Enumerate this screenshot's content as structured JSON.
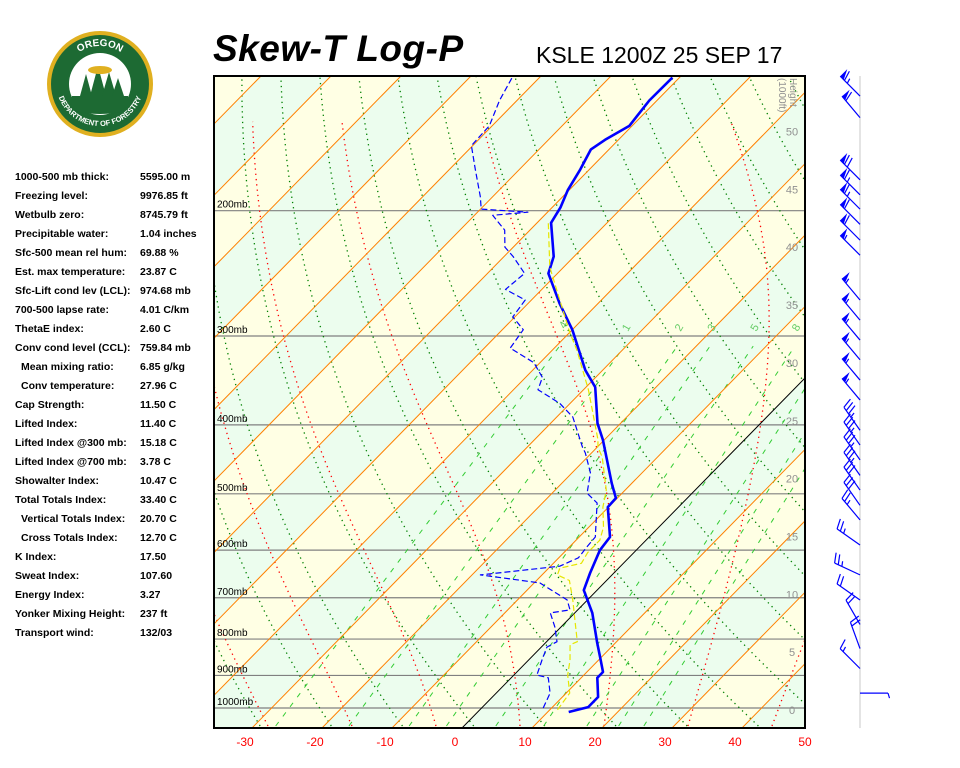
{
  "logo": {
    "top_text": "OREGON",
    "bottom_text": "DEPARTMENT OF FORESTRY"
  },
  "header": {
    "title": "Skew-T Log-P",
    "station_time": "KSLE 1200Z 25 SEP 17"
  },
  "stats": [
    {
      "label": "1000-500 mb thick:",
      "value": "5595.00 m"
    },
    {
      "label": "Freezing level:",
      "value": "9976.85 ft"
    },
    {
      "label": "Wetbulb zero:",
      "value": "8745.79 ft"
    },
    {
      "label": "Precipitable water:",
      "value": "1.04 inches"
    },
    {
      "label": "Sfc-500 mean rel hum:",
      "value": "69.88 %"
    },
    {
      "label": "Est. max temperature:",
      "value": "23.87 C"
    },
    {
      "label": "Sfc-Lift cond lev (LCL):",
      "value": "974.68 mb"
    },
    {
      "label": "700-500 lapse rate:",
      "value": "4.01 C/km"
    },
    {
      "label": "ThetaE index:",
      "value": "2.60 C"
    },
    {
      "label": "Conv cond level (CCL):",
      "value": "759.84 mb"
    },
    {
      "label": "Mean mixing ratio:",
      "value": "6.85 g/kg",
      "sub": true
    },
    {
      "label": "Conv temperature:",
      "value": "27.96 C",
      "sub": true
    },
    {
      "label": "Cap Strength:",
      "value": "11.50 C"
    },
    {
      "label": "Lifted Index:",
      "value": "11.40 C"
    },
    {
      "label": "Lifted Index @300 mb:",
      "value": "15.18 C"
    },
    {
      "label": "Lifted Index @700 mb:",
      "value": "3.78 C"
    },
    {
      "label": "Showalter Index:",
      "value": "10.47 C"
    },
    {
      "label": "Total Totals Index:",
      "value": "33.40 C"
    },
    {
      "label": "Vertical Totals Index:",
      "value": "20.70 C",
      "sub": true
    },
    {
      "label": "Cross Totals Index:",
      "value": "12.70 C",
      "sub": true
    },
    {
      "label": "K Index:",
      "value": "17.50"
    },
    {
      "label": "Sweat Index:",
      "value": "107.60"
    },
    {
      "label": "Energy Index:",
      "value": "3.27"
    },
    {
      "label": "Yonker Mixing Height:",
      "value": "237 ft"
    },
    {
      "label": "Transport wind:",
      "value": "132/03"
    }
  ],
  "chart_data": {
    "type": "line",
    "title": "Skew-T Log-P",
    "subtitle": "KSLE 1200Z 25 SEP 17",
    "x_axis": {
      "quantity": "temperature (C)",
      "ticks": [
        -30,
        -20,
        -10,
        0,
        10,
        20,
        30,
        40,
        50
      ],
      "range": [
        -35,
        50
      ]
    },
    "y_axis": {
      "scale": "log pressure",
      "range_mb": [
        1050,
        130
      ],
      "levels": [
        {
          "p": 1000,
          "label": "1000mb"
        },
        {
          "p": 900,
          "label": "900mb"
        },
        {
          "p": 800,
          "label": "800mb"
        },
        {
          "p": 700,
          "label": "700mb"
        },
        {
          "p": 600,
          "label": "600mb"
        },
        {
          "p": 500,
          "label": "500mb"
        },
        {
          "p": 400,
          "label": "400mb"
        },
        {
          "p": 300,
          "label": "300mb"
        },
        {
          "p": 200,
          "label": "200mb"
        }
      ]
    },
    "height_axis": {
      "label": "Height (1000ft)",
      "ticks": [
        0,
        5,
        10,
        15,
        20,
        25,
        30,
        35,
        40,
        45,
        50
      ]
    },
    "mixing_ratio_labels": [
      {
        "w": 0.4,
        "label": ".4"
      },
      {
        "w": 1,
        "label": "1"
      },
      {
        "w": 2,
        "label": "2"
      },
      {
        "w": 3,
        "label": "3"
      },
      {
        "w": 5,
        "label": "5"
      },
      {
        "w": 8,
        "label": "8"
      }
    ],
    "colors": {
      "isotherm": "#ff8000",
      "zero_isotherm": "#000000",
      "dry_adiabat": "#008000",
      "moist_adiabat": "#ff0000",
      "mixing_ratio": "#33cc33",
      "temperature": "#0000ff",
      "dewpoint": "#0000ff",
      "parcel": "#e6e600",
      "band_a": "#ecfdee",
      "band_b": "#ffffe4",
      "wind": "#0000ff"
    },
    "series": [
      {
        "style": "thick-solid",
        "color": "#0000ff",
        "points": [
          [
            1013,
            13.0
          ],
          [
            997,
            15.1
          ],
          [
            965,
            15.1
          ],
          [
            907,
            12.3
          ],
          [
            890,
            12.3
          ],
          [
            848,
            9.8
          ],
          [
            810,
            7.4
          ],
          [
            735,
            2.5
          ],
          [
            683,
            -1.9
          ],
          [
            646,
            -3.4
          ],
          [
            600,
            -5.2
          ],
          [
            575,
            -5.6
          ],
          [
            522,
            -10.1
          ],
          [
            507,
            -10.2
          ],
          [
            483,
            -12.9
          ],
          [
            420,
            -20.2
          ],
          [
            398,
            -23.3
          ],
          [
            354,
            -28.7
          ],
          [
            335,
            -32.5
          ],
          [
            294,
            -40.0
          ],
          [
            270,
            -45.5
          ],
          [
            245,
            -51.3
          ],
          [
            232,
            -52.9
          ],
          [
            208,
            -58.0
          ],
          [
            198,
            -58.8
          ],
          [
            187,
            -60.2
          ],
          [
            175,
            -61.3
          ],
          [
            164,
            -62.6
          ],
          [
            159,
            -61.9
          ],
          [
            152,
            -60.4
          ],
          [
            140,
            -61.1
          ],
          [
            130,
            -61.0
          ]
        ]
      },
      {
        "style": "dashed",
        "color": "#0000ff",
        "points": [
          [
            1000,
            8.8
          ],
          [
            953,
            7.7
          ],
          [
            907,
            5.3
          ],
          [
            899,
            3.3
          ],
          [
            856,
            1.9
          ],
          [
            821,
            0.8
          ],
          [
            807,
            1.5
          ],
          [
            769,
            -0.9
          ],
          [
            735,
            -3.5
          ],
          [
            728,
            -1.1
          ],
          [
            705,
            -2.9
          ],
          [
            683,
            -6.5
          ],
          [
            667,
            -9.2
          ],
          [
            650,
            -18.8
          ],
          [
            632,
            -8.7
          ],
          [
            615,
            -7.2
          ],
          [
            594,
            -7.5
          ],
          [
            575,
            -7.7
          ],
          [
            515,
            -12.2
          ],
          [
            499,
            -15.0
          ],
          [
            467,
            -17.4
          ],
          [
            438,
            -20.9
          ],
          [
            430,
            -22.1
          ],
          [
            390,
            -27.7
          ],
          [
            373,
            -31.5
          ],
          [
            357,
            -36.5
          ],
          [
            343,
            -37.6
          ],
          [
            327,
            -40.9
          ],
          [
            312,
            -46.3
          ],
          [
            294,
            -47.0
          ],
          [
            282,
            -50.3
          ],
          [
            267,
            -50.9
          ],
          [
            258,
            -55.2
          ],
          [
            245,
            -54.7
          ],
          [
            232,
            -58.7
          ],
          [
            225,
            -61.2
          ],
          [
            213,
            -63.6
          ],
          [
            203,
            -67.4
          ],
          [
            201,
            -62.8
          ],
          [
            199,
            -69.9
          ],
          [
            191,
            -71.8
          ],
          [
            175,
            -76.3
          ],
          [
            162,
            -80.2
          ],
          [
            152,
            -80.4
          ],
          [
            140,
            -82.5
          ],
          [
            130,
            -83.9
          ]
        ]
      },
      {
        "style": "dashed",
        "color": "#e6e600",
        "points": [
          [
            1006,
            11.1
          ],
          [
            953,
            10.5
          ],
          [
            899,
            7.7
          ],
          [
            856,
            5.9
          ],
          [
            815,
            3.8
          ],
          [
            807,
            4.4
          ],
          [
            752,
            1.0
          ],
          [
            705,
            -2.1
          ],
          [
            662,
            -5.3
          ],
          [
            650,
            -7.8
          ],
          [
            636,
            -8.4
          ],
          [
            626,
            -6.0
          ],
          [
            605,
            -6.6
          ],
          [
            581,
            -6.6
          ],
          [
            557,
            -7.9
          ],
          [
            522,
            -10.8
          ],
          [
            494,
            -12.7
          ],
          [
            444,
            -17.9
          ],
          [
            430,
            -19.9
          ],
          [
            420,
            -20.9
          ],
          [
            357,
            -29.3
          ],
          [
            314,
            -36.5
          ],
          [
            297,
            -39.9
          ],
          [
            264,
            -46.6
          ],
          [
            240,
            -52.0
          ],
          [
            208,
            -58.4
          ]
        ]
      }
    ],
    "winds": [
      {
        "p": 138,
        "dir": 315,
        "kt": 65
      },
      {
        "p": 148,
        "dir": 320,
        "kt": 60
      },
      {
        "p": 181,
        "dir": 315,
        "kt": 70
      },
      {
        "p": 190,
        "dir": 315,
        "kt": 65
      },
      {
        "p": 199,
        "dir": 315,
        "kt": 65
      },
      {
        "p": 209,
        "dir": 315,
        "kt": 60
      },
      {
        "p": 220,
        "dir": 315,
        "kt": 60
      },
      {
        "p": 231,
        "dir": 315,
        "kt": 55
      },
      {
        "p": 267,
        "dir": 320,
        "kt": 55
      },
      {
        "p": 285,
        "dir": 320,
        "kt": 55
      },
      {
        "p": 304,
        "dir": 320,
        "kt": 55
      },
      {
        "p": 324,
        "dir": 320,
        "kt": 55
      },
      {
        "p": 346,
        "dir": 320,
        "kt": 55
      },
      {
        "p": 369,
        "dir": 320,
        "kt": 55
      },
      {
        "p": 407,
        "dir": 325,
        "kt": 35
      },
      {
        "p": 427,
        "dir": 325,
        "kt": 35
      },
      {
        "p": 448,
        "dir": 325,
        "kt": 35
      },
      {
        "p": 471,
        "dir": 325,
        "kt": 35
      },
      {
        "p": 494,
        "dir": 325,
        "kt": 30
      },
      {
        "p": 519,
        "dir": 325,
        "kt": 30
      },
      {
        "p": 544,
        "dir": 320,
        "kt": 25
      },
      {
        "p": 590,
        "dir": 305,
        "kt": 25
      },
      {
        "p": 650,
        "dir": 295,
        "kt": 25
      },
      {
        "p": 705,
        "dir": 305,
        "kt": 20
      },
      {
        "p": 763,
        "dir": 330,
        "kt": 20
      },
      {
        "p": 825,
        "dir": 340,
        "kt": 20
      },
      {
        "p": 880,
        "dir": 315,
        "kt": 15
      },
      {
        "p": 953,
        "dir": 90,
        "kt": 5
      }
    ]
  }
}
